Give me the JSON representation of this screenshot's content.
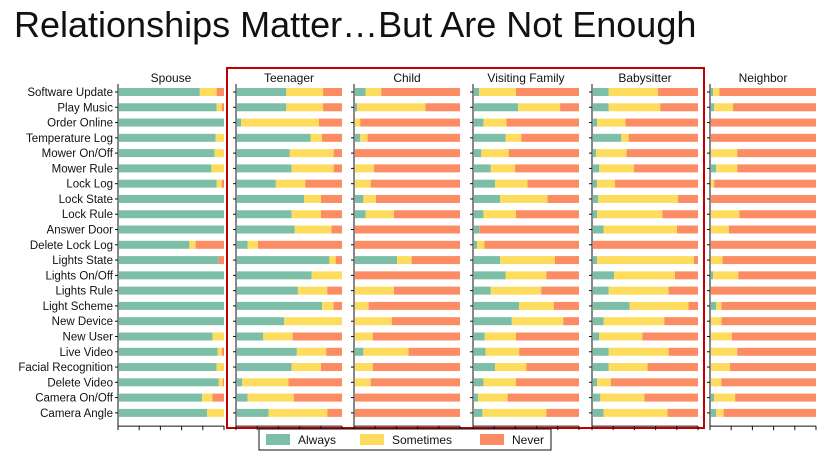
{
  "title": "Relationships Matter…But Are Not Enough",
  "colors": {
    "always": "#7dbfa6",
    "sometimes": "#fedd5e",
    "never": "#fb8c63",
    "highlight_box": "#c00000"
  },
  "chart_data": {
    "type": "bar",
    "stacked": true,
    "orientation": "horizontal",
    "categories": [
      "Software Update",
      "Play Music",
      "Order Online",
      "Temperature Log",
      "Mower On/Off",
      "Mower Rule",
      "Lock Log",
      "Lock State",
      "Lock Rule",
      "Answer Door",
      "Delete Lock Log",
      "Lights State",
      "Lights On/Off",
      "Lights Rule",
      "Light Scheme",
      "New Device",
      "New User",
      "Live Video",
      "Facial Recognition",
      "Delete Video",
      "Camera On/Off",
      "Camera Angle"
    ],
    "legend": [
      "Always",
      "Sometimes",
      "Never"
    ],
    "legend_position": "bottom",
    "xlim": [
      0,
      1
    ],
    "highlighted_panels": [
      "Teenager",
      "Child",
      "Visiting Family",
      "Babysitter"
    ],
    "panels": [
      {
        "name": "Spouse",
        "always": [
          0.77,
          0.93,
          1.0,
          0.92,
          0.91,
          0.88,
          0.93,
          1.0,
          1.0,
          1.0,
          0.67,
          0.95,
          1.0,
          1.0,
          1.0,
          1.0,
          0.89,
          0.94,
          0.93,
          0.95,
          0.79,
          0.84
        ],
        "sometimes": [
          0.16,
          0.05,
          0.0,
          0.08,
          0.09,
          0.12,
          0.05,
          0.0,
          0.0,
          0.0,
          0.06,
          0.0,
          0.0,
          0.0,
          0.0,
          0.0,
          0.11,
          0.04,
          0.07,
          0.04,
          0.1,
          0.16
        ]
      },
      {
        "name": "Teenager",
        "always": [
          0.47,
          0.47,
          0.04,
          0.7,
          0.5,
          0.52,
          0.37,
          0.64,
          0.52,
          0.55,
          0.1,
          0.88,
          0.71,
          0.58,
          0.81,
          0.45,
          0.25,
          0.57,
          0.52,
          0.05,
          0.1,
          0.3
        ],
        "sometimes": [
          0.35,
          0.35,
          0.74,
          0.11,
          0.42,
          0.4,
          0.28,
          0.16,
          0.28,
          0.35,
          0.1,
          0.06,
          0.29,
          0.28,
          0.11,
          0.55,
          0.28,
          0.28,
          0.28,
          0.44,
          0.44,
          0.56
        ]
      },
      {
        "name": "Child",
        "always": [
          0.1,
          0.02,
          0.0,
          0.05,
          0.0,
          0.0,
          0.0,
          0.08,
          0.1,
          0.0,
          0.0,
          0.4,
          0.0,
          0.0,
          0.0,
          0.0,
          0.0,
          0.08,
          0.0,
          0.0,
          0.0,
          0.0
        ],
        "sometimes": [
          0.15,
          0.65,
          0.05,
          0.07,
          0.0,
          0.18,
          0.15,
          0.12,
          0.27,
          0.0,
          0.0,
          0.14,
          0.0,
          0.37,
          0.13,
          0.35,
          0.17,
          0.43,
          0.17,
          0.15,
          0.0,
          0.0
        ]
      },
      {
        "name": "Visiting Family",
        "always": [
          0.05,
          0.42,
          0.09,
          0.3,
          0.07,
          0.16,
          0.2,
          0.25,
          0.09,
          0.05,
          0.03,
          0.25,
          0.3,
          0.16,
          0.43,
          0.36,
          0.1,
          0.11,
          0.2,
          0.09,
          0.04,
          0.08
        ],
        "sometimes": [
          0.35,
          0.4,
          0.22,
          0.15,
          0.26,
          0.23,
          0.31,
          0.45,
          0.31,
          0.0,
          0.07,
          0.52,
          0.39,
          0.48,
          0.33,
          0.49,
          0.3,
          0.32,
          0.3,
          0.31,
          0.28,
          0.61
        ]
      },
      {
        "name": "Babysitter",
        "always": [
          0.15,
          0.15,
          0.04,
          0.27,
          0.03,
          0.06,
          0.04,
          0.05,
          0.04,
          0.1,
          0.0,
          0.04,
          0.2,
          0.15,
          0.35,
          0.1,
          0.06,
          0.15,
          0.15,
          0.04,
          0.07,
          0.1
        ],
        "sometimes": [
          0.47,
          0.49,
          0.27,
          0.07,
          0.29,
          0.33,
          0.17,
          0.76,
          0.62,
          0.7,
          0.0,
          0.92,
          0.58,
          0.57,
          0.56,
          0.58,
          0.41,
          0.57,
          0.37,
          0.13,
          0.42,
          0.61
        ]
      },
      {
        "name": "Neighbor",
        "always": [
          0.02,
          0.03,
          0.0,
          0.0,
          0.0,
          0.05,
          0.0,
          0.0,
          0.0,
          0.0,
          0.0,
          0.0,
          0.02,
          0.0,
          0.05,
          0.0,
          0.0,
          0.0,
          0.0,
          0.0,
          0.03,
          0.05
        ],
        "sometimes": [
          0.06,
          0.18,
          0.0,
          0.0,
          0.25,
          0.2,
          0.03,
          0.0,
          0.27,
          0.17,
          0.0,
          0.11,
          0.24,
          0.0,
          0.05,
          0.1,
          0.2,
          0.25,
          0.18,
          0.1,
          0.2,
          0.07
        ]
      }
    ]
  }
}
